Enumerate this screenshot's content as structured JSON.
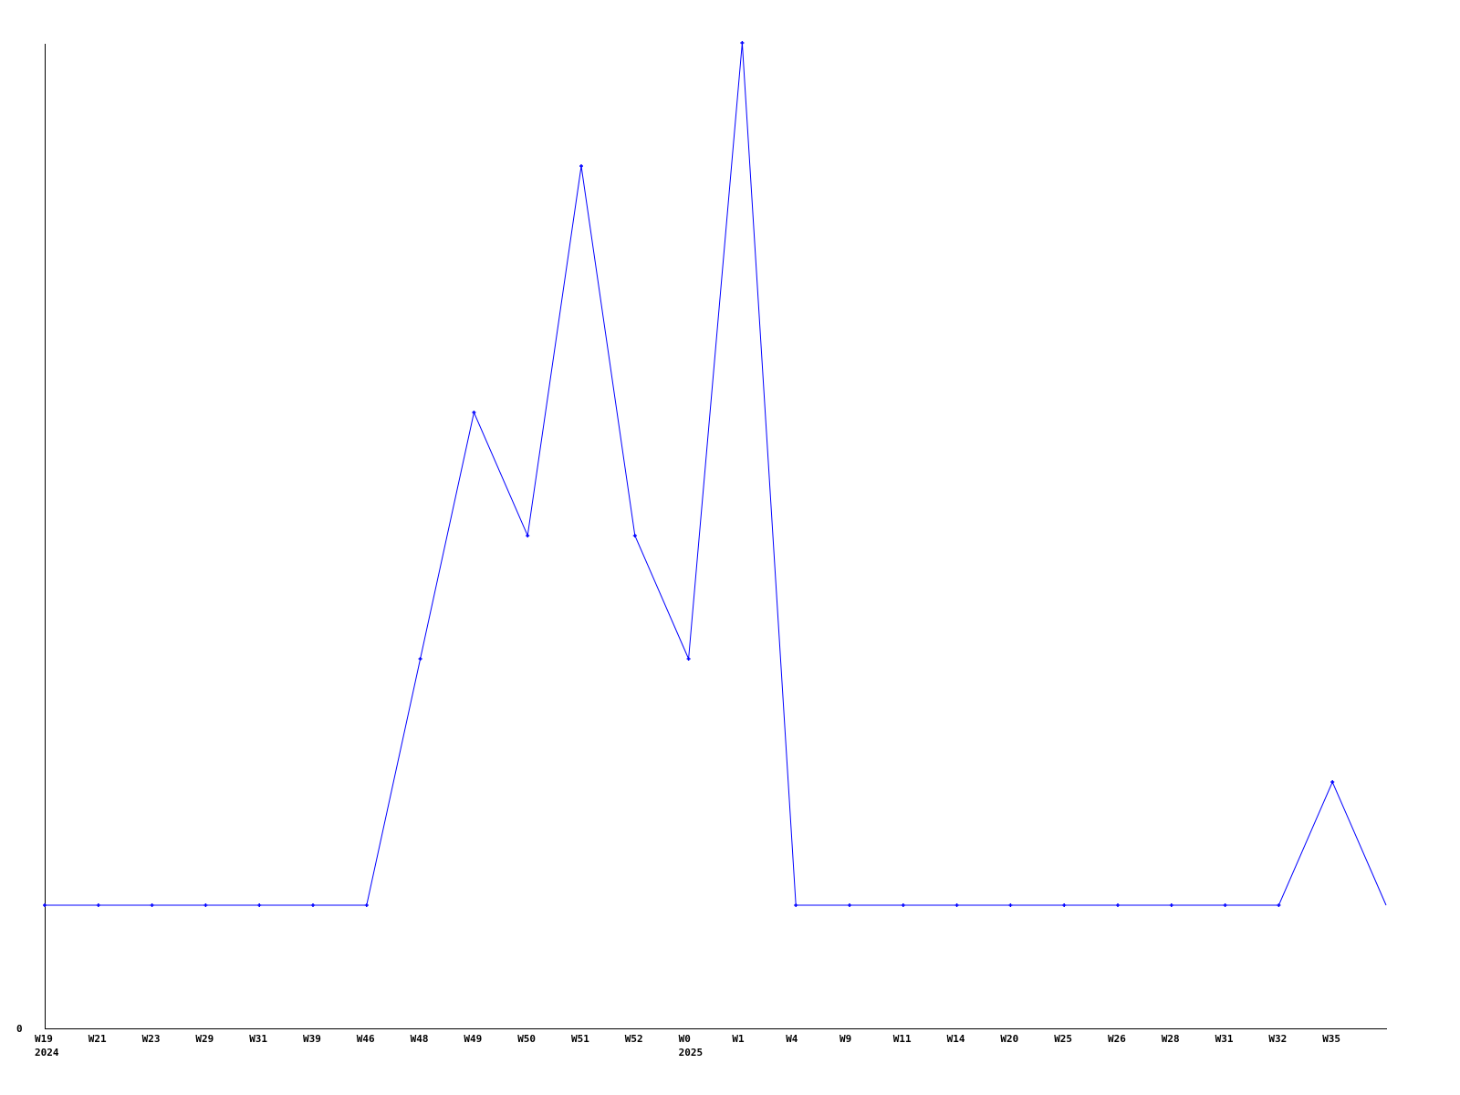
{
  "chart_data": {
    "type": "line",
    "title": "",
    "xlabel": "",
    "ylabel": "",
    "categories": [
      "W19",
      "W21",
      "W23",
      "W29",
      "W31",
      "W39",
      "W46",
      "W48",
      "W49",
      "W50",
      "W51",
      "W52",
      "W0",
      "W1",
      "W4",
      "W9",
      "W11",
      "W14",
      "W20",
      "W25",
      "W26",
      "W28",
      "W31",
      "W32",
      "W35",
      ""
    ],
    "year_labels": [
      {
        "category_index": 0,
        "label": "2024"
      },
      {
        "category_index": 12,
        "label": "2025"
      }
    ],
    "series": [
      {
        "values": [
          1,
          1,
          1,
          1,
          1,
          1,
          1,
          3,
          5,
          4,
          7,
          4,
          3,
          8,
          1,
          1,
          1,
          1,
          1,
          1,
          1,
          1,
          1,
          1,
          2,
          1
        ]
      }
    ],
    "y_tick_labels": [
      "0"
    ],
    "ylim": [
      0,
      8
    ],
    "grid": false,
    "legend": "none",
    "colors": {
      "line": "#0000ff",
      "axis": "#000000",
      "background": "#ffffff"
    }
  }
}
